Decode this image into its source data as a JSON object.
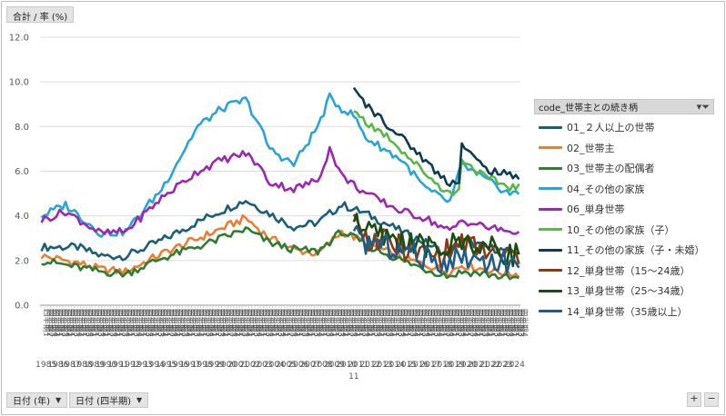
{
  "measure_label": "合計 / 率 (%)",
  "filters": {
    "year": "日付 (年)",
    "quarter": "日付 (四半期)"
  },
  "legend": {
    "title": "code_世帯主との続き柄"
  },
  "zoom": {
    "plus": "+",
    "minus": "−"
  },
  "chart_data": {
    "type": "line",
    "ylim": [
      0,
      12
    ],
    "yticks": [
      "0.0",
      "2.0",
      "4.0",
      "6.0",
      "8.0",
      "10.0",
      "12.0"
    ],
    "grid": true,
    "legend_position": "right",
    "x_axis": {
      "start_year": 1985,
      "end_year": 2024,
      "quarter_labels": [
        "四半期1",
        "四半期2",
        "四半期3",
        "四半期4"
      ],
      "year_labels": [
        "1985",
        "1986",
        "1987",
        "1988",
        "1989",
        "1990",
        "1991",
        "1992",
        "1993",
        "1994",
        "1995",
        "1996",
        "1997",
        "1998",
        "1999",
        "2000",
        "2001",
        "2002",
        "2003",
        "2004",
        "2005",
        "2006",
        "2007",
        "2008",
        "2009",
        "2010",
        "2011",
        "2012",
        "2013",
        "2014",
        "2015",
        "2016",
        "2017",
        "2018",
        "2019",
        "2020",
        "2021",
        "2022",
        "2023",
        "2024"
      ],
      "extra_label": "11"
    },
    "series": [
      {
        "name": "01_２人以上の世帯",
        "color": "#1a5f7a",
        "start": 1985,
        "points": [
          [
            1985,
            2.6
          ],
          [
            1988,
            2.6
          ],
          [
            1990,
            2.2
          ],
          [
            1992,
            2.2
          ],
          [
            1995,
            2.9
          ],
          [
            1999,
            4.0
          ],
          [
            2002,
            4.7
          ],
          [
            2004,
            4.1
          ],
          [
            2006,
            3.5
          ],
          [
            2008,
            3.7
          ],
          [
            2010,
            4.5
          ],
          [
            2012,
            4.1
          ],
          [
            2015,
            3.3
          ],
          [
            2017,
            2.8
          ],
          [
            2019,
            2.2
          ],
          [
            2020,
            2.9
          ],
          [
            2022,
            2.6
          ],
          [
            2024,
            2.4
          ]
        ]
      },
      {
        "name": "02_世帯主",
        "color": "#ed7d31",
        "start": 1985,
        "points": [
          [
            1985,
            2.2
          ],
          [
            1988,
            1.9
          ],
          [
            1990,
            1.6
          ],
          [
            1992,
            1.5
          ],
          [
            1995,
            2.3
          ],
          [
            1999,
            3.2
          ],
          [
            2002,
            3.9
          ],
          [
            2004,
            3.0
          ],
          [
            2006,
            2.5
          ],
          [
            2008,
            2.3
          ],
          [
            2010,
            3.3
          ],
          [
            2012,
            2.8
          ],
          [
            2015,
            2.1
          ],
          [
            2017,
            1.8
          ],
          [
            2019,
            1.5
          ],
          [
            2020,
            1.8
          ],
          [
            2022,
            1.6
          ],
          [
            2024,
            1.4
          ]
        ]
      },
      {
        "name": "03_世帯主の配偶者",
        "color": "#2e7d32",
        "start": 1985,
        "points": [
          [
            1985,
            2.0
          ],
          [
            1988,
            1.7
          ],
          [
            1990,
            1.5
          ],
          [
            1992,
            1.4
          ],
          [
            1995,
            2.1
          ],
          [
            1999,
            2.8
          ],
          [
            2002,
            3.4
          ],
          [
            2004,
            2.8
          ],
          [
            2006,
            2.5
          ],
          [
            2008,
            2.4
          ],
          [
            2010,
            3.3
          ],
          [
            2012,
            2.7
          ],
          [
            2015,
            2.0
          ],
          [
            2017,
            1.6
          ],
          [
            2019,
            1.3
          ],
          [
            2020,
            1.5
          ],
          [
            2022,
            1.4
          ],
          [
            2024,
            1.2
          ]
        ]
      },
      {
        "name": "04_その他の家族",
        "color": "#29a3dc",
        "start": 1985,
        "points": [
          [
            1985,
            4.0
          ],
          [
            1987,
            4.5
          ],
          [
            1990,
            3.2
          ],
          [
            1992,
            3.3
          ],
          [
            1995,
            5.2
          ],
          [
            1998,
            8.0
          ],
          [
            2000,
            8.8
          ],
          [
            2002,
            9.2
          ],
          [
            2003,
            8.2
          ],
          [
            2004,
            7.0
          ],
          [
            2006,
            6.3
          ],
          [
            2008,
            8.0
          ],
          [
            2009,
            9.3
          ],
          [
            2010,
            8.8
          ],
          [
            2011,
            8.5
          ],
          [
            2012,
            7.5
          ],
          [
            2015,
            6.5
          ],
          [
            2017,
            5.2
          ],
          [
            2019,
            4.6
          ],
          [
            2020,
            6.3
          ],
          [
            2022,
            5.6
          ],
          [
            2024,
            5.0
          ]
        ]
      },
      {
        "name": "06_単身世帯",
        "color": "#9c27b0",
        "start": 1985,
        "points": [
          [
            1985,
            3.8
          ],
          [
            1987,
            4.2
          ],
          [
            1990,
            3.2
          ],
          [
            1992,
            3.3
          ],
          [
            1995,
            4.8
          ],
          [
            1998,
            6.0
          ],
          [
            2000,
            6.5
          ],
          [
            2002,
            6.8
          ],
          [
            2003,
            6.3
          ],
          [
            2004,
            5.5
          ],
          [
            2006,
            5.2
          ],
          [
            2008,
            5.6
          ],
          [
            2009,
            7.0
          ],
          [
            2010,
            5.8
          ],
          [
            2012,
            5.0
          ],
          [
            2015,
            4.2
          ],
          [
            2017,
            3.9
          ],
          [
            2019,
            3.3
          ],
          [
            2020,
            3.8
          ],
          [
            2022,
            3.5
          ],
          [
            2024,
            3.3
          ]
        ]
      },
      {
        "name": "10_その他の家族（子）",
        "color": "#59b947",
        "start": 2011,
        "points": [
          [
            2011,
            8.8
          ],
          [
            2012,
            8.2
          ],
          [
            2014,
            7.5
          ],
          [
            2016,
            6.4
          ],
          [
            2018,
            5.4
          ],
          [
            2019,
            5.0
          ],
          [
            2019.75,
            5.1
          ],
          [
            2020,
            6.6
          ],
          [
            2021,
            6.1
          ],
          [
            2022,
            5.7
          ],
          [
            2024,
            5.3
          ]
        ]
      },
      {
        "name": "11_その他の家族（子・未婚）",
        "color": "#0d3b52",
        "start": 2011,
        "points": [
          [
            2011,
            9.6
          ],
          [
            2012,
            9.0
          ],
          [
            2014,
            8.0
          ],
          [
            2016,
            7.0
          ],
          [
            2018,
            5.9
          ],
          [
            2019,
            5.5
          ],
          [
            2019.75,
            5.6
          ],
          [
            2020,
            7.2
          ],
          [
            2021,
            6.6
          ],
          [
            2022,
            6.1
          ],
          [
            2024,
            5.8
          ]
        ]
      },
      {
        "name": "12_単身世帯（15～24歳）",
        "color": "#8b3a12",
        "start": 2011,
        "points": [
          [
            2011,
            3.8
          ],
          [
            2012,
            3.0
          ],
          [
            2014,
            2.8
          ],
          [
            2016,
            2.4
          ],
          [
            2018,
            2.2
          ],
          [
            2020,
            2.8
          ],
          [
            2022,
            2.4
          ],
          [
            2024,
            2.2
          ]
        ]
      },
      {
        "name": "13_単身世帯（25～34歳）",
        "color": "#1b4d13",
        "start": 2011,
        "points": [
          [
            2011,
            4.0
          ],
          [
            2012,
            3.3
          ],
          [
            2014,
            3.0
          ],
          [
            2016,
            2.8
          ],
          [
            2018,
            2.4
          ],
          [
            2020,
            2.9
          ],
          [
            2022,
            2.6
          ],
          [
            2024,
            2.3
          ]
        ]
      },
      {
        "name": "14_単身世帯（35歳以上）",
        "color": "#1f5c8a",
        "start": 2011,
        "points": [
          [
            2011,
            3.2
          ],
          [
            2012,
            2.8
          ],
          [
            2014,
            2.6
          ],
          [
            2016,
            2.3
          ],
          [
            2018,
            1.9
          ],
          [
            2020,
            2.2
          ],
          [
            2022,
            2.0
          ],
          [
            2024,
            1.9
          ]
        ]
      }
    ]
  }
}
